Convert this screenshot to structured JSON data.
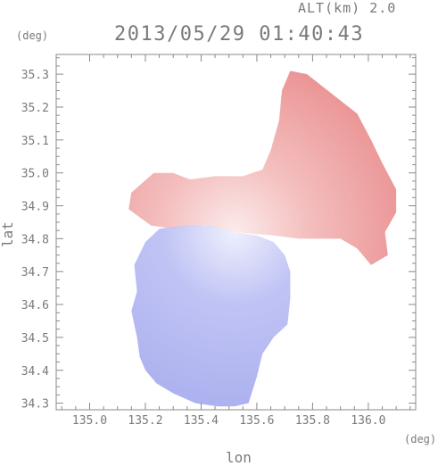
{
  "header": {
    "alt_label": "ALT(km) 2.0",
    "timestamp": "2013/05/29 01:40:43"
  },
  "chart_data": {
    "type": "heatmap",
    "title": "2013/05/29 01:40:43",
    "xlabel": "lon",
    "ylabel": "lat",
    "x_unit": "(deg)",
    "y_unit": "(deg)",
    "xlim": [
      134.88,
      136.17
    ],
    "ylim": [
      34.28,
      35.36
    ],
    "x_ticks": [
      135.0,
      135.2,
      135.4,
      135.6,
      135.8,
      136.0
    ],
    "x_tick_labels": [
      "135.0",
      "135.2",
      "135.4",
      "135.6",
      "135.8",
      "136.0"
    ],
    "y_ticks": [
      34.3,
      34.4,
      34.5,
      34.6,
      34.7,
      34.8,
      34.9,
      35.0,
      35.1,
      35.2,
      35.3
    ],
    "y_tick_labels": [
      "34.3",
      "34.4",
      "34.5",
      "34.6",
      "34.7",
      "34.8",
      "34.9",
      "35.0",
      "35.1",
      "35.2",
      "35.3"
    ],
    "grid": false,
    "radar_center": [
      135.52,
      34.82
    ],
    "colors": {
      "away": "#f3b8b8",
      "away_strong": "#e57a7a",
      "toward": "#b9bdf3",
      "toward_strong": "#9da3ec",
      "axis": "#8a8a8a"
    },
    "regions": [
      {
        "name": "positive-velocity-region",
        "color": "away",
        "polygon": [
          [
            135.52,
            34.82
          ],
          [
            135.41,
            34.84
          ],
          [
            135.3,
            34.83
          ],
          [
            135.22,
            34.84
          ],
          [
            135.14,
            34.89
          ],
          [
            135.15,
            34.94
          ],
          [
            135.19,
            34.97
          ],
          [
            135.23,
            35.0
          ],
          [
            135.3,
            35.0
          ],
          [
            135.36,
            34.98
          ],
          [
            135.45,
            34.99
          ],
          [
            135.55,
            34.99
          ],
          [
            135.62,
            35.01
          ],
          [
            135.65,
            35.07
          ],
          [
            135.68,
            35.16
          ],
          [
            135.69,
            35.25
          ],
          [
            135.72,
            35.31
          ],
          [
            135.78,
            35.3
          ],
          [
            135.84,
            35.26
          ],
          [
            135.9,
            35.22
          ],
          [
            135.96,
            35.18
          ],
          [
            136.01,
            35.1
          ],
          [
            136.05,
            35.03
          ],
          [
            136.1,
            34.95
          ],
          [
            136.1,
            34.88
          ],
          [
            136.06,
            34.82
          ],
          [
            136.07,
            34.75
          ],
          [
            136.01,
            34.72
          ],
          [
            135.96,
            34.77
          ],
          [
            135.9,
            34.8
          ],
          [
            135.82,
            34.8
          ],
          [
            135.75,
            34.8
          ],
          [
            135.66,
            34.81
          ]
        ]
      },
      {
        "name": "negative-velocity-region",
        "color": "toward",
        "polygon": [
          [
            135.52,
            34.82
          ],
          [
            135.44,
            34.84
          ],
          [
            135.34,
            34.84
          ],
          [
            135.25,
            34.83
          ],
          [
            135.2,
            34.79
          ],
          [
            135.16,
            34.72
          ],
          [
            135.17,
            34.64
          ],
          [
            135.15,
            34.58
          ],
          [
            135.17,
            34.5
          ],
          [
            135.18,
            34.44
          ],
          [
            135.2,
            34.4
          ],
          [
            135.24,
            34.36
          ],
          [
            135.3,
            34.33
          ],
          [
            135.38,
            34.3
          ],
          [
            135.46,
            34.29
          ],
          [
            135.52,
            34.29
          ],
          [
            135.57,
            34.3
          ],
          [
            135.6,
            34.38
          ],
          [
            135.62,
            34.45
          ],
          [
            135.66,
            34.5
          ],
          [
            135.71,
            34.54
          ],
          [
            135.72,
            34.62
          ],
          [
            135.72,
            34.7
          ],
          [
            135.7,
            34.75
          ],
          [
            135.66,
            34.79
          ],
          [
            135.6,
            34.81
          ]
        ]
      }
    ]
  }
}
